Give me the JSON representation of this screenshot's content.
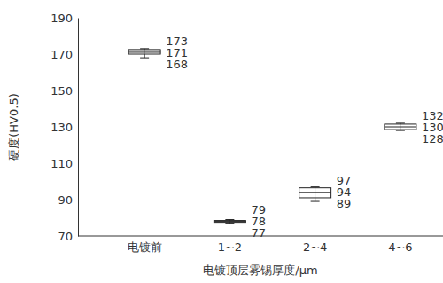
{
  "chart_data": {
    "type": "box",
    "y_label": "硬度(HV0.5)",
    "x_label": "电镀顶层雾锡厚度/μm",
    "categories": [
      "电镀前",
      "1~2",
      "2~4",
      "4~6"
    ],
    "min": [
      168,
      77,
      89,
      128
    ],
    "q1": [
      170,
      77.5,
      91,
      128.5
    ],
    "median": [
      171,
      78,
      94,
      130
    ],
    "q3": [
      172.5,
      78.5,
      96.5,
      131.5
    ],
    "max": [
      173,
      79,
      97,
      132
    ],
    "ylim": [
      70,
      190
    ],
    "yticks": [
      70,
      90,
      110,
      130,
      150,
      170,
      190
    ],
    "color": "#222222",
    "data_labels": true,
    "grid": false
  }
}
